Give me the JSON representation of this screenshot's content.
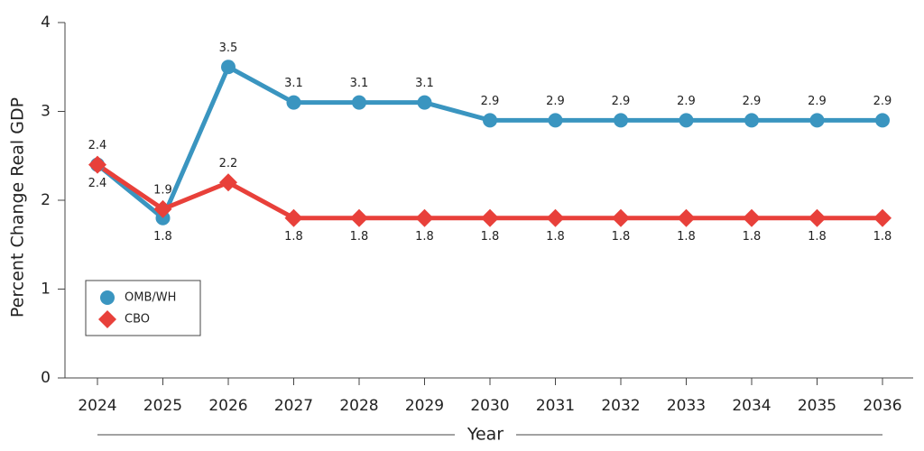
{
  "chart_data": {
    "type": "line",
    "y_label": "Percent Change Real GDP",
    "x_label": "Year",
    "categories": [
      "2024",
      "2025",
      "2026",
      "2027",
      "2028",
      "2029",
      "2030",
      "2031",
      "2032",
      "2033",
      "2034",
      "2035",
      "2036"
    ],
    "series": [
      {
        "name": "OMB/WH",
        "color": "#3a95c0",
        "marker": "circle",
        "values": [
          2.4,
          1.8,
          3.5,
          3.1,
          3.1,
          3.1,
          2.9,
          2.9,
          2.9,
          2.9,
          2.9,
          2.9,
          2.9
        ]
      },
      {
        "name": "CBO",
        "color": "#e8403a",
        "marker": "diamond",
        "values": [
          2.4,
          1.9,
          2.2,
          1.8,
          1.8,
          1.8,
          1.8,
          1.8,
          1.8,
          1.8,
          1.8,
          1.8,
          1.8
        ]
      }
    ],
    "ylim": [
      0,
      4
    ],
    "yticks": [
      0,
      1,
      2,
      3,
      4
    ],
    "legend": "lower-left"
  }
}
